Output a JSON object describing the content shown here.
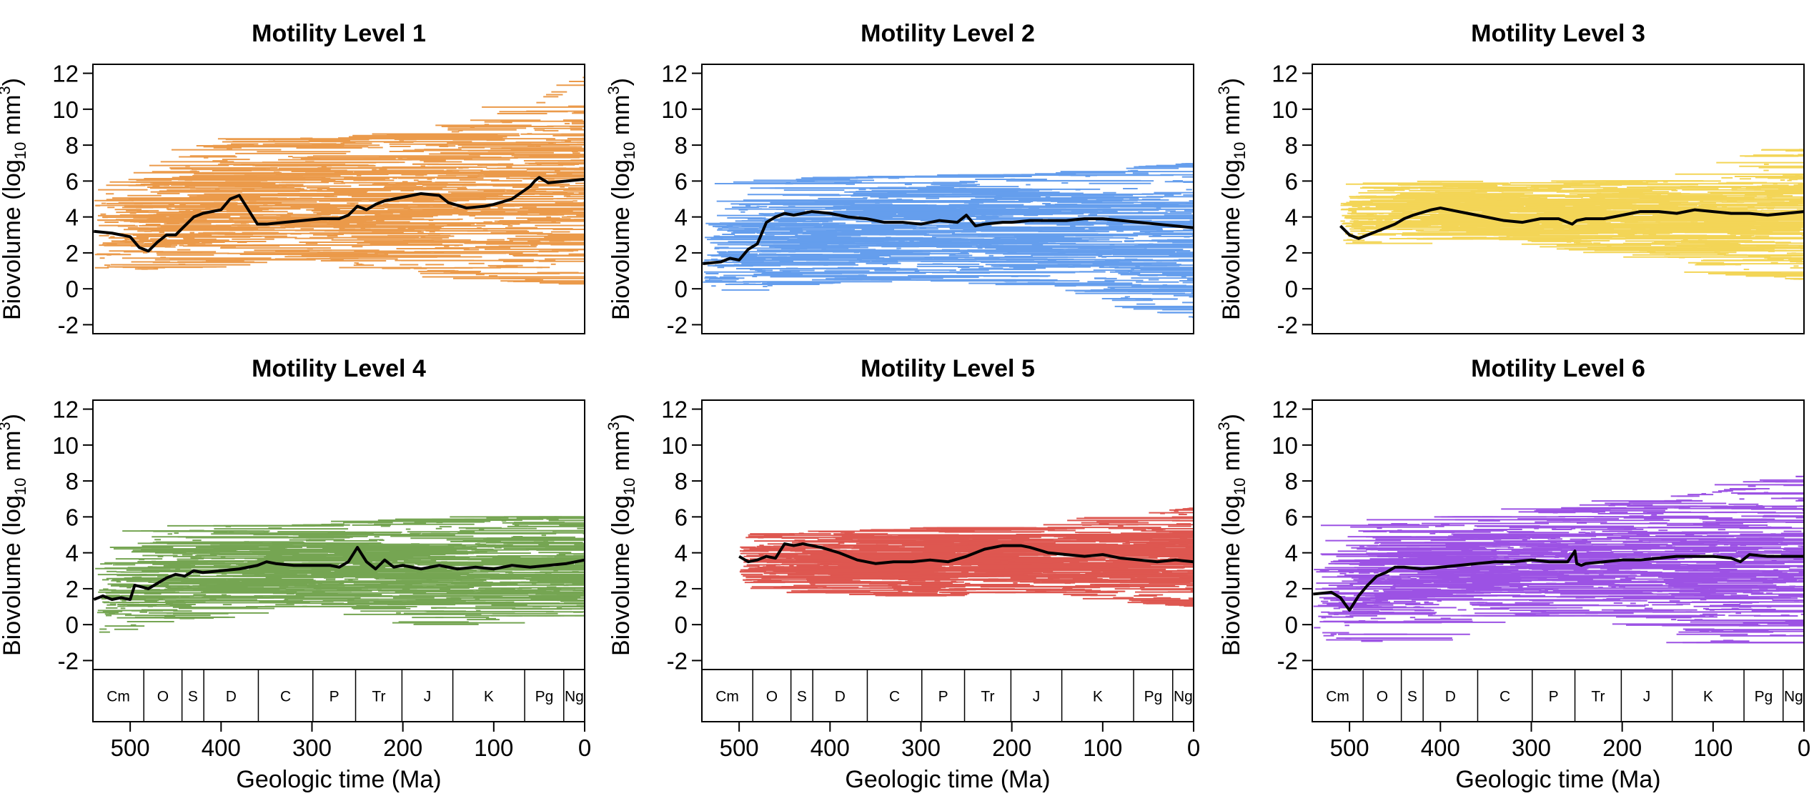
{
  "chart_data": [
    {
      "type": "line",
      "title": "Motility Level 1",
      "ylabel": "Biovolume (log10 mm3)",
      "xlabel": "",
      "color": "#E8892B",
      "xlim": [
        541,
        0
      ],
      "ylim": [
        -2.5,
        12.5
      ],
      "x_ticks": [
        500,
        400,
        300,
        200,
        100,
        0
      ],
      "y_ticks": [
        -2,
        0,
        2,
        4,
        6,
        8,
        10,
        12
      ],
      "show_time_axis": false,
      "spread": {
        "lo": [
          0.8,
          1.2,
          1.6,
          2.0,
          1.2,
          1.0,
          0.6,
          0.2
        ],
        "hi": [
          5.0,
          6.2,
          8.0,
          8.4,
          8.0,
          8.6,
          9.5,
          11.8
        ]
      },
      "mean_line": {
        "x": [
          540,
          520,
          500,
          490,
          480,
          470,
          460,
          450,
          440,
          430,
          420,
          400,
          390,
          380,
          370,
          360,
          350,
          330,
          310,
          290,
          270,
          260,
          250,
          240,
          230,
          220,
          200,
          180,
          160,
          150,
          130,
          110,
          100,
          80,
          60,
          55,
          50,
          40,
          20,
          0
        ],
        "y": [
          3.2,
          3.1,
          2.9,
          2.3,
          2.1,
          2.6,
          3.0,
          3.0,
          3.5,
          4.0,
          4.2,
          4.4,
          5.0,
          5.2,
          4.4,
          3.6,
          3.6,
          3.7,
          3.8,
          3.9,
          3.9,
          4.1,
          4.6,
          4.4,
          4.7,
          4.9,
          5.1,
          5.3,
          5.2,
          4.8,
          4.5,
          4.6,
          4.7,
          5.0,
          5.7,
          6.0,
          6.2,
          5.9,
          6.0,
          6.1
        ]
      }
    },
    {
      "type": "line",
      "title": "Motility Level 2",
      "ylabel": "Biovolume (log10 mm3)",
      "xlabel": "",
      "color": "#4B8EEB",
      "xlim": [
        541,
        0
      ],
      "ylim": [
        -2.5,
        12.5
      ],
      "x_ticks": [
        500,
        400,
        300,
        200,
        100,
        0
      ],
      "y_ticks": [
        -2,
        0,
        2,
        4,
        6,
        8,
        10,
        12
      ],
      "show_time_axis": false,
      "spread": {
        "lo": [
          -0.5,
          0.2,
          0.5,
          0.5,
          0.5,
          0.3,
          -0.5,
          -1.6
        ],
        "hi": [
          2.5,
          5.8,
          6.2,
          6.2,
          6.3,
          6.4,
          6.5,
          7.0
        ]
      },
      "mean_line": {
        "x": [
          540,
          520,
          510,
          500,
          490,
          480,
          470,
          460,
          450,
          440,
          420,
          400,
          380,
          360,
          340,
          320,
          300,
          280,
          260,
          250,
          240,
          230,
          210,
          200,
          180,
          160,
          140,
          120,
          100,
          80,
          60,
          40,
          20,
          0
        ],
        "y": [
          1.4,
          1.5,
          1.7,
          1.6,
          2.2,
          2.5,
          3.7,
          4.0,
          4.2,
          4.1,
          4.3,
          4.2,
          4.0,
          3.9,
          3.7,
          3.7,
          3.6,
          3.8,
          3.7,
          4.1,
          3.5,
          3.6,
          3.7,
          3.7,
          3.8,
          3.8,
          3.8,
          3.9,
          3.9,
          3.8,
          3.7,
          3.6,
          3.5,
          3.4
        ]
      }
    },
    {
      "type": "line",
      "title": "Motility Level 3",
      "ylabel": "Biovolume (log10 mm3)",
      "xlabel": "",
      "color": "#F2CE3A",
      "xlim": [
        541,
        0
      ],
      "ylim": [
        -2.5,
        12.5
      ],
      "x_ticks": [
        500,
        400,
        300,
        200,
        100,
        0
      ],
      "y_ticks": [
        -2,
        0,
        2,
        4,
        6,
        8,
        10,
        12
      ],
      "show_time_axis": false,
      "spread": {
        "lo": [
          3.0,
          2.5,
          2.8,
          2.8,
          2.5,
          2.0,
          1.0,
          0.5
        ],
        "hi": [
          3.8,
          5.5,
          6.0,
          5.5,
          6.0,
          6.0,
          6.2,
          8.4
        ]
      },
      "mean_line": {
        "x": [
          510,
          500,
          490,
          480,
          470,
          460,
          450,
          440,
          430,
          410,
          400,
          390,
          370,
          350,
          330,
          310,
          290,
          270,
          255,
          250,
          240,
          220,
          200,
          180,
          160,
          140,
          120,
          100,
          80,
          60,
          40,
          20,
          0
        ],
        "y": [
          3.5,
          3.0,
          2.8,
          3.0,
          3.2,
          3.4,
          3.6,
          3.9,
          4.1,
          4.4,
          4.5,
          4.4,
          4.2,
          4.0,
          3.8,
          3.7,
          3.9,
          3.9,
          3.6,
          3.8,
          3.9,
          3.9,
          4.1,
          4.3,
          4.3,
          4.2,
          4.4,
          4.3,
          4.2,
          4.2,
          4.1,
          4.2,
          4.3
        ]
      }
    },
    {
      "type": "line",
      "title": "Motility Level 4",
      "ylabel": "Biovolume (log10 mm3)",
      "xlabel": "Geologic time (Ma)",
      "color": "#5E9635",
      "xlim": [
        541,
        0
      ],
      "ylim": [
        -2.5,
        12.5
      ],
      "x_ticks": [
        500,
        400,
        300,
        200,
        100,
        0
      ],
      "y_ticks": [
        -2,
        0,
        2,
        4,
        6,
        8,
        10,
        12
      ],
      "show_time_axis": true,
      "spread": {
        "lo": [
          -0.5,
          0.0,
          1.0,
          1.0,
          1.0,
          0.0,
          0.5,
          0.5
        ],
        "hi": [
          3.0,
          5.0,
          5.5,
          5.5,
          5.7,
          5.8,
          6.0,
          6.0
        ]
      },
      "mean_line": {
        "x": [
          540,
          530,
          520,
          510,
          500,
          495,
          480,
          470,
          460,
          450,
          440,
          430,
          420,
          400,
          380,
          360,
          350,
          340,
          320,
          300,
          280,
          270,
          260,
          250,
          240,
          230,
          220,
          210,
          200,
          180,
          160,
          140,
          120,
          100,
          80,
          60,
          40,
          20,
          0
        ],
        "y": [
          1.4,
          1.6,
          1.4,
          1.5,
          1.4,
          2.2,
          2.0,
          2.3,
          2.6,
          2.8,
          2.7,
          3.0,
          2.9,
          3.0,
          3.1,
          3.3,
          3.5,
          3.4,
          3.3,
          3.3,
          3.3,
          3.2,
          3.5,
          4.3,
          3.5,
          3.1,
          3.6,
          3.2,
          3.3,
          3.1,
          3.3,
          3.1,
          3.2,
          3.1,
          3.3,
          3.2,
          3.3,
          3.4,
          3.6
        ]
      }
    },
    {
      "type": "line",
      "title": "Motility Level 5",
      "ylabel": "Biovolume (log10 mm3)",
      "xlabel": "Geologic time (Ma)",
      "color": "#D93A32",
      "xlim": [
        541,
        0
      ],
      "ylim": [
        -2.5,
        12.5
      ],
      "x_ticks": [
        500,
        400,
        300,
        200,
        100,
        0
      ],
      "y_ticks": [
        -2,
        0,
        2,
        4,
        6,
        8,
        10,
        12
      ],
      "show_time_axis": true,
      "spread": {
        "lo": [
          3.0,
          2.2,
          1.8,
          1.6,
          1.8,
          1.8,
          1.5,
          1.0
        ],
        "hi": [
          4.0,
          5.0,
          5.2,
          5.2,
          5.4,
          5.3,
          5.8,
          6.5
        ]
      },
      "mean_line": {
        "x": [
          500,
          490,
          480,
          470,
          460,
          450,
          440,
          430,
          410,
          390,
          370,
          350,
          330,
          310,
          290,
          270,
          250,
          230,
          210,
          190,
          180,
          160,
          140,
          120,
          100,
          80,
          60,
          40,
          20,
          0
        ],
        "y": [
          3.8,
          3.5,
          3.6,
          3.8,
          3.7,
          4.5,
          4.4,
          4.5,
          4.3,
          4.0,
          3.6,
          3.4,
          3.5,
          3.5,
          3.6,
          3.5,
          3.8,
          4.2,
          4.4,
          4.4,
          4.3,
          4.0,
          3.9,
          3.8,
          3.9,
          3.7,
          3.6,
          3.5,
          3.6,
          3.5
        ]
      }
    },
    {
      "type": "line",
      "title": "Motility Level 6",
      "ylabel": "Biovolume (log10 mm3)",
      "xlabel": "Geologic time (Ma)",
      "color": "#8B35E0",
      "xlim": [
        541,
        0
      ],
      "ylim": [
        -2.5,
        12.5
      ],
      "x_ticks": [
        500,
        400,
        300,
        200,
        100,
        0
      ],
      "y_ticks": [
        -2,
        0,
        2,
        4,
        6,
        8,
        10,
        12
      ],
      "show_time_axis": true,
      "spread": {
        "lo": [
          -0.5,
          -1.0,
          0.5,
          0.5,
          0.5,
          0.5,
          -1.0,
          -1.0
        ],
        "hi": [
          2.5,
          5.5,
          6.0,
          6.0,
          6.5,
          7.0,
          7.5,
          8.3
        ]
      },
      "mean_line": {
        "x": [
          540,
          520,
          510,
          500,
          490,
          480,
          470,
          460,
          450,
          440,
          420,
          400,
          380,
          360,
          340,
          320,
          300,
          280,
          260,
          252,
          250,
          245,
          240,
          220,
          200,
          180,
          160,
          140,
          120,
          100,
          80,
          70,
          60,
          40,
          20,
          0
        ],
        "y": [
          1.7,
          1.8,
          1.5,
          0.8,
          1.6,
          2.2,
          2.7,
          2.9,
          3.2,
          3.2,
          3.1,
          3.2,
          3.3,
          3.4,
          3.5,
          3.5,
          3.6,
          3.5,
          3.5,
          4.1,
          3.4,
          3.3,
          3.4,
          3.5,
          3.6,
          3.6,
          3.7,
          3.8,
          3.8,
          3.8,
          3.7,
          3.5,
          3.9,
          3.8,
          3.8,
          3.8
        ]
      }
    }
  ],
  "periods": [
    {
      "label": "Cm",
      "start": 541,
      "end": 485
    },
    {
      "label": "O",
      "start": 485,
      "end": 443
    },
    {
      "label": "S",
      "start": 443,
      "end": 419
    },
    {
      "label": "D",
      "start": 419,
      "end": 359
    },
    {
      "label": "C",
      "start": 359,
      "end": 299
    },
    {
      "label": "P",
      "start": 299,
      "end": 252
    },
    {
      "label": "Tr",
      "start": 252,
      "end": 201
    },
    {
      "label": "J",
      "start": 201,
      "end": 145
    },
    {
      "label": "K",
      "start": 145,
      "end": 66
    },
    {
      "label": "Pg",
      "start": 66,
      "end": 23
    },
    {
      "label": "Ng",
      "start": 23,
      "end": 0
    }
  ]
}
